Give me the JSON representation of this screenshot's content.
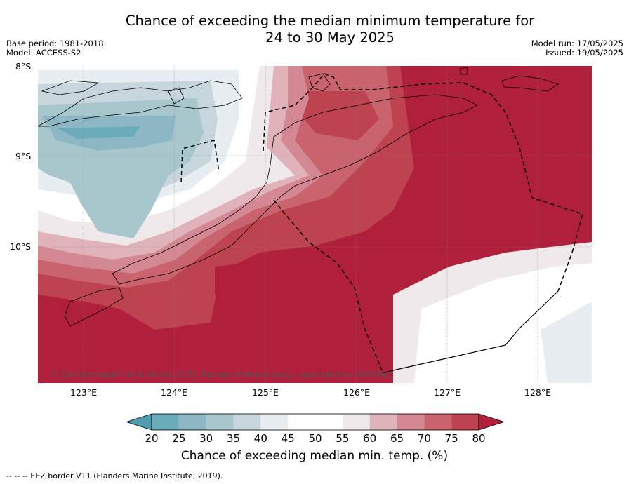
{
  "title_line1": "Chance of exceeding the median minimum temperature for",
  "title_line2": "24 to 30 May 2025",
  "base_period": "Base period: 1981-2018",
  "model": "Model: ACCESS-S2",
  "model_run": "Model run: 17/05/2025",
  "issued": "Issued: 19/05/2025",
  "lat_labels": [
    "8°S",
    "9°S",
    "10°S"
  ],
  "lon_labels": [
    "123°E",
    "124°E",
    "125°E",
    "126°E",
    "127°E",
    "128°E"
  ],
  "copyright": "© Commonwealth of Australia 2025, Bureau of Meteorology, supported by COSPPac",
  "colorbar": {
    "ticks": [
      "20",
      "25",
      "30",
      "35",
      "40",
      "45",
      "50",
      "55",
      "60",
      "65",
      "70",
      "75",
      "80"
    ],
    "label": "Chance of exceeding median min. temp. (%)",
    "colors": [
      "#4f9daf",
      "#6aacb9",
      "#8db7c4",
      "#a8c7cc",
      "#c7d6dd",
      "#e8edf1",
      "#ffffff",
      "#ffffff",
      "#efe9eb",
      "#e0b3bb",
      "#d48893",
      "#c9646f",
      "#bd4351",
      "#b01f3b"
    ]
  },
  "footer": "--  --  -- EEZ border V11 (Flanders Marine Institute, 2019)."
}
